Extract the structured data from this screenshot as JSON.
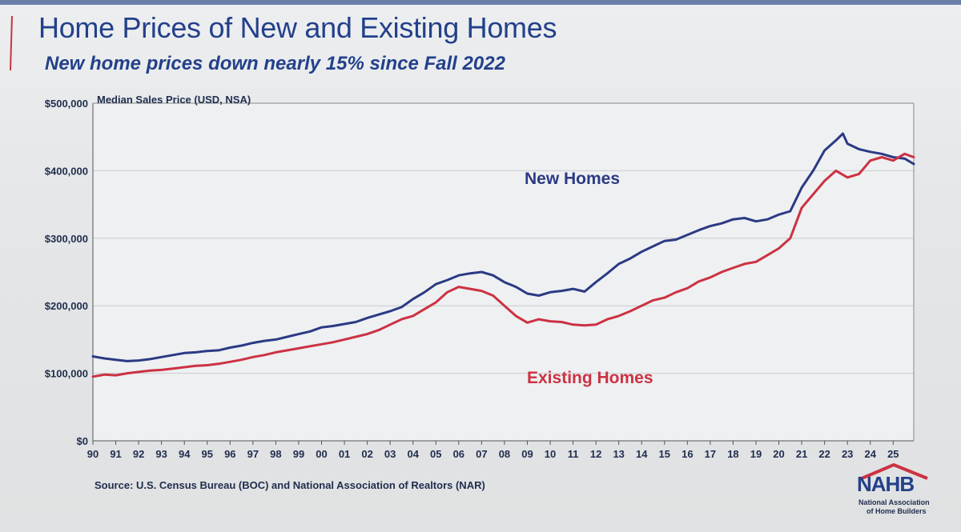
{
  "slide": {
    "title": "Home Prices of New and Existing Homes",
    "subtitle": "New home prices down nearly 15% since Fall 2022",
    "source": "Source: U.S. Census Bureau (BOC) and National Association of Realtors (NAR)"
  },
  "logo": {
    "text": "NAHB",
    "subtitle_line1": "National Association",
    "subtitle_line2": "of Home Builders"
  },
  "colors": {
    "new_homes": "#2b3a84",
    "existing_homes": "#cc3242",
    "title": "#23408a",
    "accent": "#cc3242"
  },
  "chart_data": {
    "type": "line",
    "ylabel": "Median Sales Price (USD, NSA)",
    "ylim": [
      0,
      500000
    ],
    "yticks": [
      0,
      100000,
      200000,
      300000,
      400000,
      500000
    ],
    "ytick_labels": [
      "$0",
      "$100,000",
      "$200,000",
      "$300,000",
      "$400,000",
      "$500,000"
    ],
    "xlim": [
      1990,
      2025.9
    ],
    "xticks": [
      1990,
      1991,
      1992,
      1993,
      1994,
      1995,
      1996,
      1997,
      1998,
      1999,
      2000,
      2001,
      2002,
      2003,
      2004,
      2005,
      2006,
      2007,
      2008,
      2009,
      2010,
      2011,
      2012,
      2013,
      2014,
      2015,
      2016,
      2017,
      2018,
      2019,
      2020,
      2021,
      2022,
      2023,
      2024,
      2025
    ],
    "xtick_labels": [
      "90",
      "91",
      "92",
      "93",
      "94",
      "95",
      "96",
      "97",
      "98",
      "99",
      "00",
      "01",
      "02",
      "03",
      "04",
      "05",
      "06",
      "07",
      "08",
      "09",
      "10",
      "11",
      "12",
      "13",
      "14",
      "15",
      "16",
      "17",
      "18",
      "19",
      "20",
      "21",
      "22",
      "23",
      "24",
      "25"
    ],
    "grid": true,
    "series_labels_inline": true,
    "series": [
      {
        "name": "New Homes",
        "x": [
          1990,
          1990.5,
          1991,
          1991.5,
          1992,
          1992.5,
          1993,
          1993.5,
          1994,
          1994.5,
          1995,
          1995.5,
          1996,
          1996.5,
          1997,
          1997.5,
          1998,
          1998.5,
          1999,
          1999.5,
          2000,
          2000.5,
          2001,
          2001.5,
          2002,
          2002.5,
          2003,
          2003.5,
          2004,
          2004.5,
          2005,
          2005.5,
          2006,
          2006.5,
          2007,
          2007.5,
          2008,
          2008.5,
          2009,
          2009.5,
          2010,
          2010.5,
          2011,
          2011.5,
          2012,
          2012.5,
          2013,
          2013.5,
          2014,
          2014.5,
          2015,
          2015.5,
          2016,
          2016.5,
          2017,
          2017.5,
          2018,
          2018.5,
          2019,
          2019.5,
          2020,
          2020.5,
          2021,
          2021.5,
          2022,
          2022.5,
          2022.8,
          2023,
          2023.5,
          2024,
          2024.5,
          2025,
          2025.5,
          2025.9
        ],
        "values": [
          125000,
          122000,
          120000,
          118000,
          119000,
          121000,
          124000,
          127000,
          130000,
          131000,
          133000,
          134000,
          138000,
          141000,
          145000,
          148000,
          150000,
          154000,
          158000,
          162000,
          168000,
          170000,
          173000,
          176000,
          182000,
          187000,
          192000,
          198000,
          210000,
          220000,
          232000,
          238000,
          245000,
          248000,
          250000,
          245000,
          235000,
          228000,
          218000,
          215000,
          220000,
          222000,
          225000,
          221000,
          235000,
          248000,
          262000,
          270000,
          280000,
          288000,
          296000,
          298000,
          305000,
          312000,
          318000,
          322000,
          328000,
          330000,
          325000,
          328000,
          335000,
          340000,
          375000,
          400000,
          430000,
          445000,
          455000,
          440000,
          432000,
          428000,
          425000,
          420000,
          418000,
          410000
        ]
      },
      {
        "name": "Existing Homes",
        "x": [
          1990,
          1990.5,
          1991,
          1991.5,
          1992,
          1992.5,
          1993,
          1993.5,
          1994,
          1994.5,
          1995,
          1995.5,
          1996,
          1996.5,
          1997,
          1997.5,
          1998,
          1998.5,
          1999,
          1999.5,
          2000,
          2000.5,
          2001,
          2001.5,
          2002,
          2002.5,
          2003,
          2003.5,
          2004,
          2004.5,
          2005,
          2005.5,
          2006,
          2006.5,
          2007,
          2007.5,
          2008,
          2008.5,
          2009,
          2009.5,
          2010,
          2010.5,
          2011,
          2011.5,
          2012,
          2012.5,
          2013,
          2013.5,
          2014,
          2014.5,
          2015,
          2015.5,
          2016,
          2016.5,
          2017,
          2017.5,
          2018,
          2018.5,
          2019,
          2019.5,
          2020,
          2020.5,
          2021,
          2021.5,
          2022,
          2022.5,
          2023,
          2023.5,
          2024,
          2024.5,
          2025,
          2025.5,
          2025.9
        ],
        "values": [
          95000,
          98000,
          97000,
          100000,
          102000,
          104000,
          105000,
          107000,
          109000,
          111000,
          112000,
          114000,
          117000,
          120000,
          124000,
          127000,
          131000,
          134000,
          137000,
          140000,
          143000,
          146000,
          150000,
          154000,
          158000,
          164000,
          172000,
          180000,
          185000,
          195000,
          205000,
          220000,
          228000,
          225000,
          222000,
          215000,
          200000,
          185000,
          175000,
          180000,
          177000,
          176000,
          172000,
          171000,
          172000,
          180000,
          185000,
          192000,
          200000,
          208000,
          212000,
          220000,
          226000,
          236000,
          242000,
          250000,
          256000,
          262000,
          265000,
          275000,
          285000,
          300000,
          345000,
          365000,
          385000,
          400000,
          390000,
          395000,
          415000,
          420000,
          415000,
          425000,
          420000
        ]
      }
    ]
  }
}
